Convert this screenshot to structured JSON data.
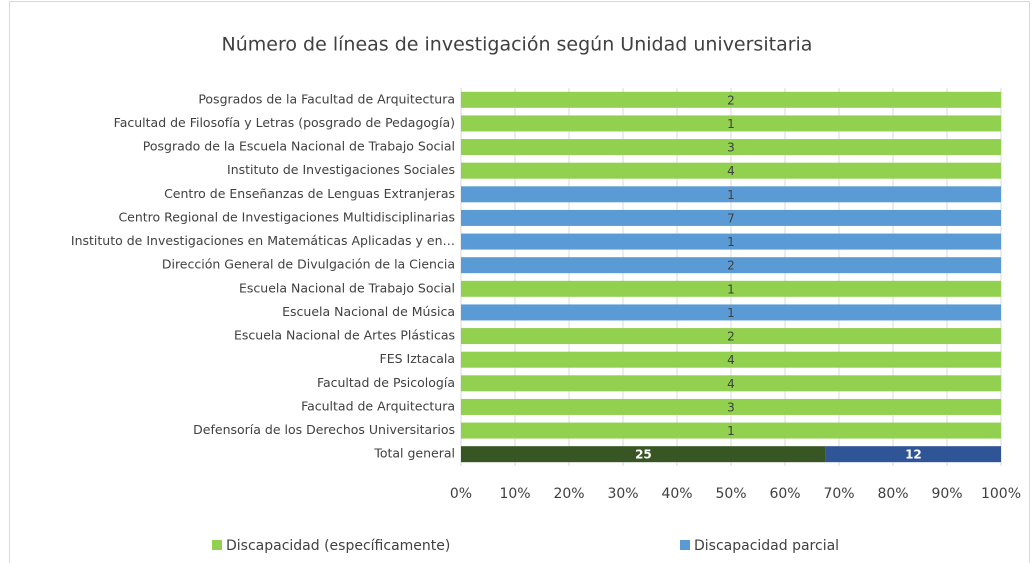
{
  "chart_data": {
    "type": "bar",
    "orientation": "horizontal",
    "stacked": "percent",
    "title": "Número de líneas de investigación según Unidad universitaria",
    "categories": [
      "Posgrados de la Facultad de Arquitectura",
      "Facultad de Filosofía y Letras (posgrado de Pedagogía)",
      "Posgrado de la Escuela Nacional de Trabajo Social",
      "Instituto de Investigaciones Sociales",
      "Centro de Enseñanzas de Lenguas Extranjeras",
      "Centro Regional de Investigaciones Multidisciplinarias",
      "Instituto de Investigaciones en Matemáticas Aplicadas y en…",
      "Dirección General de Divulgación de la Ciencia",
      "Escuela Nacional de Trabajo Social",
      "Escuela Nacional de Música",
      "Escuela Nacional de Artes Plásticas",
      "FES Iztacala",
      "Facultad de Psicología",
      "Facultad de Arquitectura",
      "Defensoría de los Derechos Universitarios",
      "Total general"
    ],
    "series": [
      {
        "name": "Discapacidad (específicamente)",
        "color": "#92d050",
        "total_color": "#375623",
        "values": [
          2,
          1,
          3,
          4,
          null,
          null,
          null,
          null,
          1,
          null,
          2,
          4,
          4,
          3,
          1,
          25
        ]
      },
      {
        "name": "Discapacidad parcial",
        "color": "#5b9bd5",
        "total_color": "#2f5597",
        "values": [
          null,
          null,
          null,
          null,
          1,
          7,
          1,
          2,
          null,
          1,
          null,
          null,
          null,
          null,
          null,
          12
        ]
      }
    ],
    "xlim": [
      0,
      100
    ],
    "xticks": [
      {
        "value": 0,
        "label": "0%"
      },
      {
        "value": 10,
        "label": "10%"
      },
      {
        "value": 20,
        "label": "20%"
      },
      {
        "value": 30,
        "label": "30%"
      },
      {
        "value": 40,
        "label": "40%"
      },
      {
        "value": 50,
        "label": "50%"
      },
      {
        "value": 60,
        "label": "60%"
      },
      {
        "value": 70,
        "label": "70%"
      },
      {
        "value": 80,
        "label": "80%"
      },
      {
        "value": 90,
        "label": "90%"
      },
      {
        "value": 100,
        "label": "100%"
      }
    ],
    "grid": true,
    "legend": "bottom"
  }
}
